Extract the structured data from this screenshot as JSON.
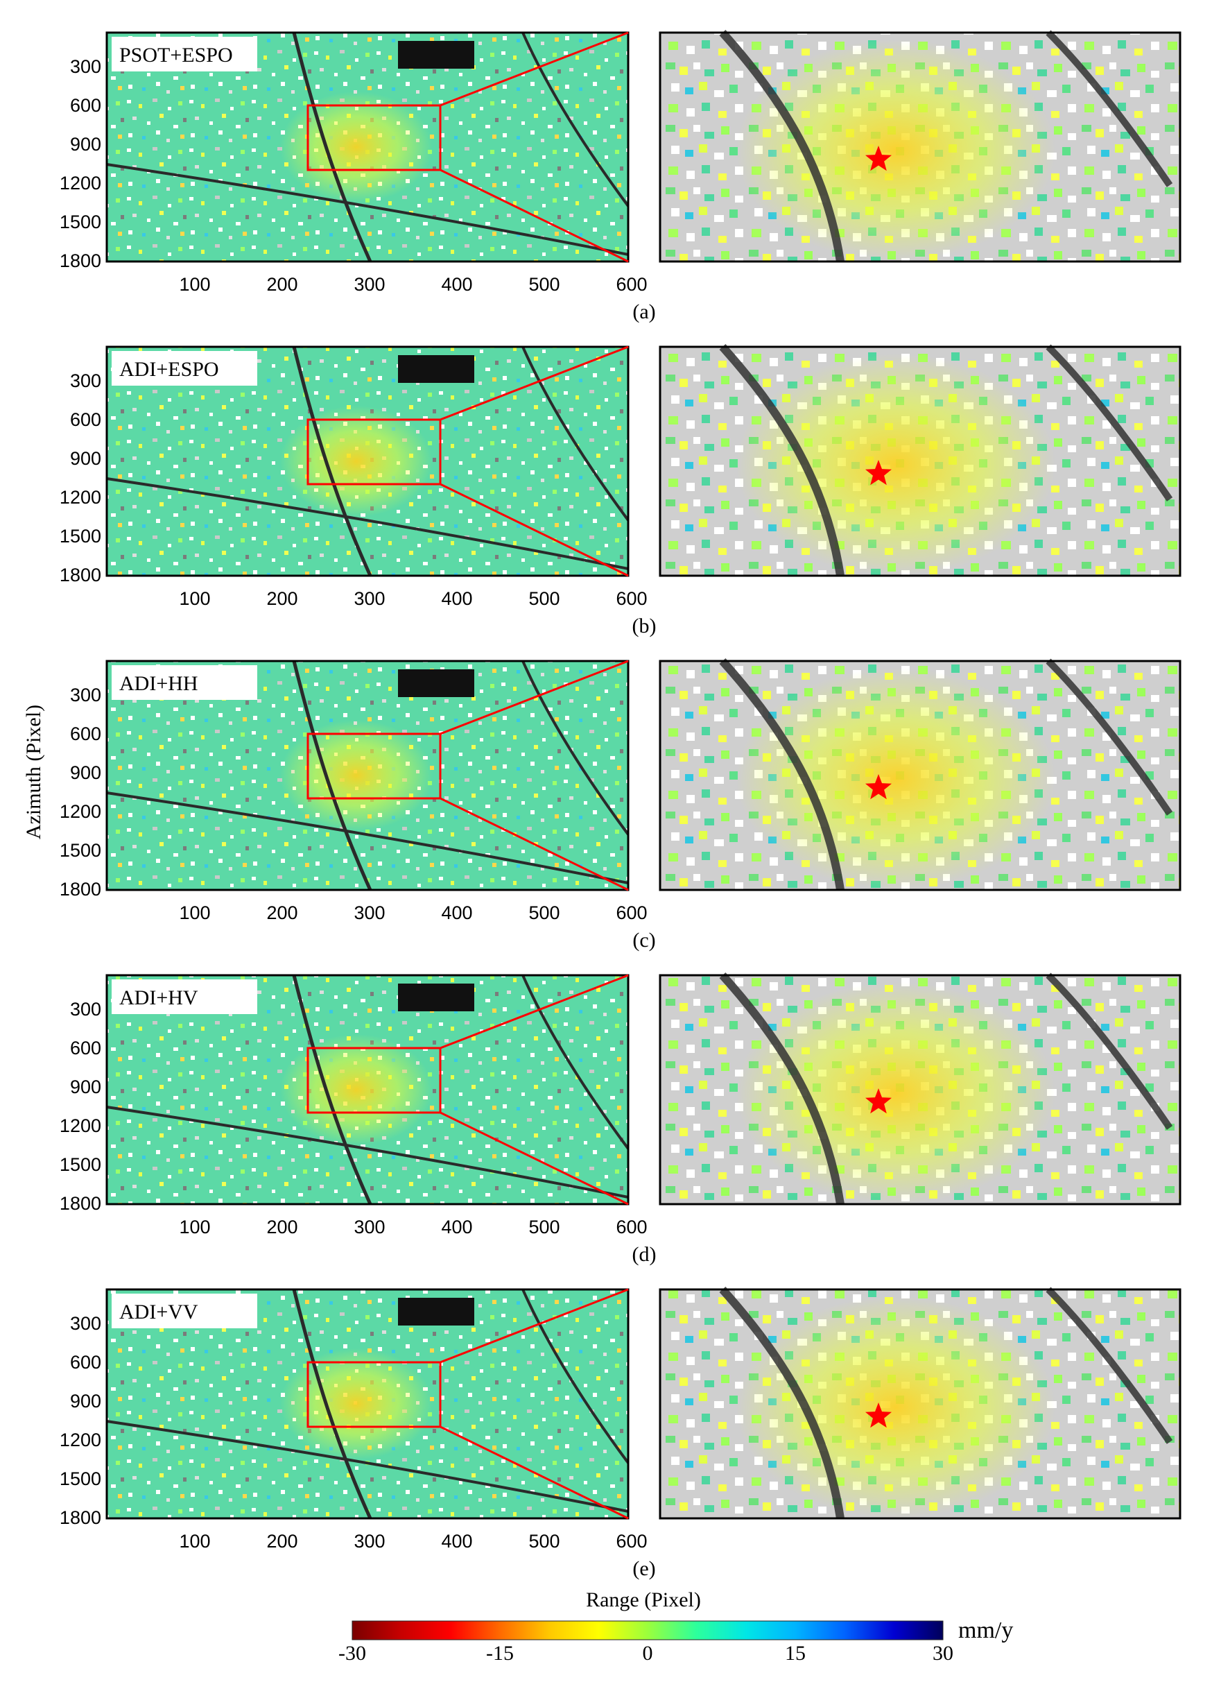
{
  "figure": {
    "y_axis_label": "Azimuth (Pixel)",
    "x_axis_label": "Range (Pixel)",
    "x_ticks": [
      "100",
      "200",
      "300",
      "400",
      "500",
      "600"
    ],
    "y_ticks": [
      "300",
      "600",
      "900",
      "1200",
      "1500",
      "1800"
    ],
    "panels": [
      {
        "letter": "(a)",
        "method": "PSOT+ESPO"
      },
      {
        "letter": "(b)",
        "method": "ADI+ESPO"
      },
      {
        "letter": "(c)",
        "method": "ADI+HH"
      },
      {
        "letter": "(d)",
        "method": "ADI+HV"
      },
      {
        "letter": "(e)",
        "method": "ADI+VV"
      }
    ],
    "zoom_marker": "star",
    "colorbar": {
      "unit": "mm/y",
      "ticks": [
        "-30",
        "-15",
        "0",
        "15",
        "30"
      ],
      "range": [
        -30,
        30
      ],
      "colors": [
        "#7a0000",
        "#c80000",
        "#ff0000",
        "#ff6a00",
        "#ffc800",
        "#ffff00",
        "#9bff3c",
        "#2cff9c",
        "#00e6e6",
        "#00b4ff",
        "#0064ff",
        "#0000d2",
        "#00005a"
      ]
    },
    "highlight_color": "#ff0000"
  }
}
